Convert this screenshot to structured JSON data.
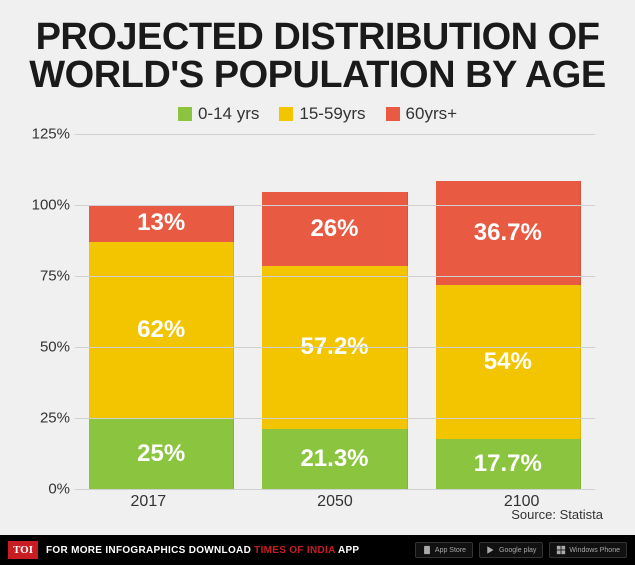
{
  "title_line1": "PROJECTED DISTRIBUTION OF",
  "title_line2": "WORLD'S POPULATION BY AGE",
  "legend": [
    {
      "label": "0-14 yrs",
      "color": "#8bc53f"
    },
    {
      "label": "15-59yrs",
      "color": "#f2c500"
    },
    {
      "label": "60yrs+",
      "color": "#e85a42"
    }
  ],
  "chart": {
    "type": "stacked-bar",
    "ymax": 125,
    "ytick_step": 25,
    "ytick_suffix": "%",
    "background_color": "#f0f0f0",
    "grid_color": "#d0d0d0",
    "categories": [
      "2017",
      "2050",
      "2100"
    ],
    "series_colors": {
      "young": "#8bc53f",
      "mid": "#f2c500",
      "old": "#e85a42"
    },
    "data": [
      {
        "category": "2017",
        "young": 25,
        "mid": 62,
        "old": 13,
        "young_label": "25%",
        "mid_label": "62%",
        "old_label": "13%"
      },
      {
        "category": "2050",
        "young": 21.3,
        "mid": 57.2,
        "old": 26,
        "young_label": "21.3%",
        "mid_label": "57.2%",
        "old_label": "26%"
      },
      {
        "category": "2100",
        "young": 17.7,
        "mid": 54,
        "old": 36.7,
        "young_label": "17.7%",
        "mid_label": "54%",
        "old_label": "36.7%"
      }
    ],
    "value_label_fontsize": 24,
    "value_label_color": "#ffffff",
    "bar_width_pct": 28
  },
  "source_label": "Source: Statista",
  "footer": {
    "brand": "TOI",
    "text_prefix": "FOR MORE  INFOGRAPHICS DOWNLOAD ",
    "text_highlight": "TIMES OF INDIA ",
    "text_suffix": " APP",
    "badges": [
      "App Store",
      "Google play",
      "Windows Phone"
    ]
  }
}
